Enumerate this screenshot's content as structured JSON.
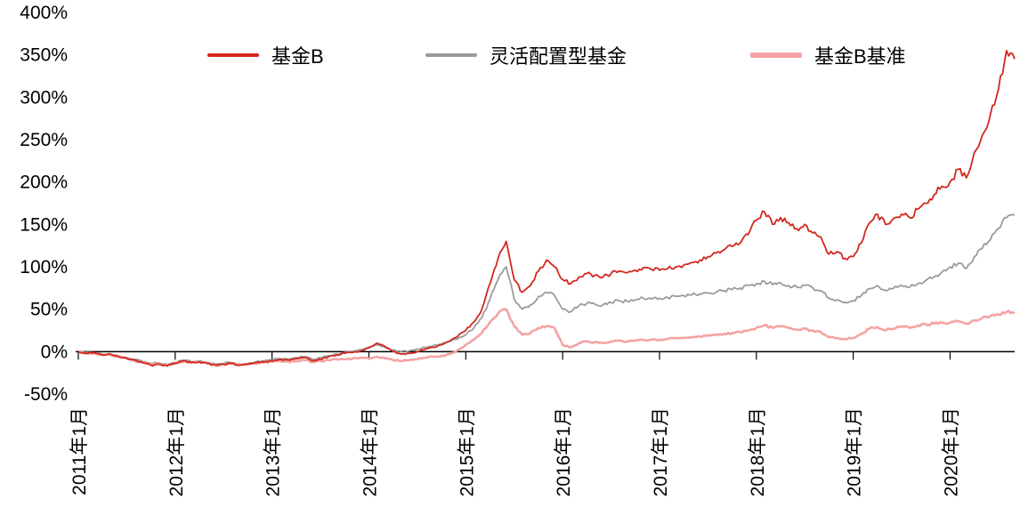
{
  "chart_data": {
    "type": "line",
    "title": "",
    "xlabel": "",
    "ylabel": "",
    "ylim": [
      -50,
      400
    ],
    "y_tick_step": 50,
    "y_tick_labels": [
      "400%",
      "350%",
      "300%",
      "250%",
      "200%",
      "150%",
      "100%",
      "50%",
      "0%",
      "-50%"
    ],
    "x_range": {
      "start": "2011-01",
      "end": "2020-09",
      "freq": "monthly"
    },
    "x_tick_labels": [
      "2011年1月",
      "2012年1月",
      "2013年1月",
      "2014年1月",
      "2015年1月",
      "2016年1月",
      "2017年1月",
      "2018年1月",
      "2019年1月",
      "2020年1月"
    ],
    "unit": "percent",
    "grid": false,
    "legend_position": "top",
    "axis_color": "#000000",
    "series": [
      {
        "name": "基金B",
        "color": "#d2281e",
        "values": [
          0,
          -2,
          -1,
          -4,
          -3,
          -6,
          -8,
          -10,
          -13,
          -16,
          -15,
          -17,
          -14,
          -11,
          -13,
          -12,
          -14,
          -16,
          -15,
          -14,
          -16,
          -15,
          -13,
          -12,
          -11,
          -9,
          -10,
          -8,
          -7,
          -11,
          -9,
          -6,
          -4,
          -2,
          -1,
          1,
          5,
          10,
          6,
          0,
          -3,
          -2,
          0,
          3,
          5,
          8,
          12,
          18,
          25,
          35,
          50,
          80,
          110,
          130,
          85,
          70,
          78,
          95,
          108,
          100,
          85,
          80,
          88,
          92,
          90,
          88,
          92,
          95,
          93,
          96,
          99,
          97,
          96,
          98,
          100,
          102,
          105,
          108,
          112,
          116,
          120,
          124,
          128,
          138,
          155,
          165,
          150,
          158,
          152,
          145,
          150,
          140,
          135,
          115,
          118,
          110,
          112,
          128,
          152,
          162,
          150,
          157,
          162,
          158,
          168,
          175,
          185,
          195,
          200,
          215,
          205,
          235,
          255,
          280,
          310,
          355,
          345
        ]
      },
      {
        "name": "灵活配置型基金",
        "color": "#9b9b9b",
        "values": [
          0,
          -1,
          -2,
          -3,
          -3,
          -5,
          -7,
          -9,
          -12,
          -14,
          -13,
          -15,
          -13,
          -10,
          -12,
          -11,
          -13,
          -15,
          -14,
          -13,
          -15,
          -14,
          -12,
          -11,
          -10,
          -8,
          -9,
          -7,
          -6,
          -9,
          -7,
          -5,
          -3,
          -1,
          0,
          2,
          4,
          8,
          5,
          2,
          0,
          1,
          3,
          5,
          7,
          9,
          12,
          15,
          20,
          28,
          40,
          62,
          85,
          100,
          62,
          50,
          55,
          65,
          70,
          66,
          50,
          47,
          54,
          57,
          56,
          55,
          58,
          60,
          59,
          61,
          63,
          62,
          63,
          64,
          65,
          66,
          67,
          68,
          69,
          70,
          72,
          73,
          75,
          78,
          80,
          83,
          79,
          81,
          78,
          76,
          78,
          75,
          72,
          63,
          61,
          58,
          60,
          66,
          74,
          78,
          72,
          75,
          78,
          76,
          80,
          84,
          88,
          94,
          100,
          104,
          98,
          112,
          122,
          132,
          145,
          158,
          161
        ]
      },
      {
        "name": "基金B基准",
        "color": "#f4a3a3",
        "values": [
          0,
          -2,
          -2,
          -4,
          -4,
          -6,
          -8,
          -11,
          -13,
          -15,
          -14,
          -16,
          -14,
          -12,
          -13,
          -12,
          -14,
          -16,
          -15,
          -14,
          -16,
          -15,
          -14,
          -13,
          -12,
          -11,
          -12,
          -11,
          -10,
          -12,
          -11,
          -10,
          -9,
          -9,
          -8,
          -7,
          -8,
          -6,
          -8,
          -10,
          -11,
          -10,
          -9,
          -7,
          -6,
          -5,
          -3,
          2,
          8,
          14,
          22,
          35,
          45,
          50,
          30,
          20,
          22,
          28,
          30,
          28,
          8,
          5,
          10,
          12,
          11,
          10,
          12,
          13,
          12,
          13,
          14,
          14,
          14,
          15,
          16,
          16,
          17,
          18,
          19,
          20,
          21,
          22,
          23,
          25,
          28,
          31,
          28,
          30,
          28,
          26,
          27,
          25,
          23,
          17,
          16,
          15,
          16,
          21,
          27,
          29,
          25,
          27,
          30,
          28,
          31,
          32,
          33,
          34,
          34,
          36,
          33,
          37,
          40,
          42,
          44,
          47,
          45
        ]
      }
    ]
  }
}
